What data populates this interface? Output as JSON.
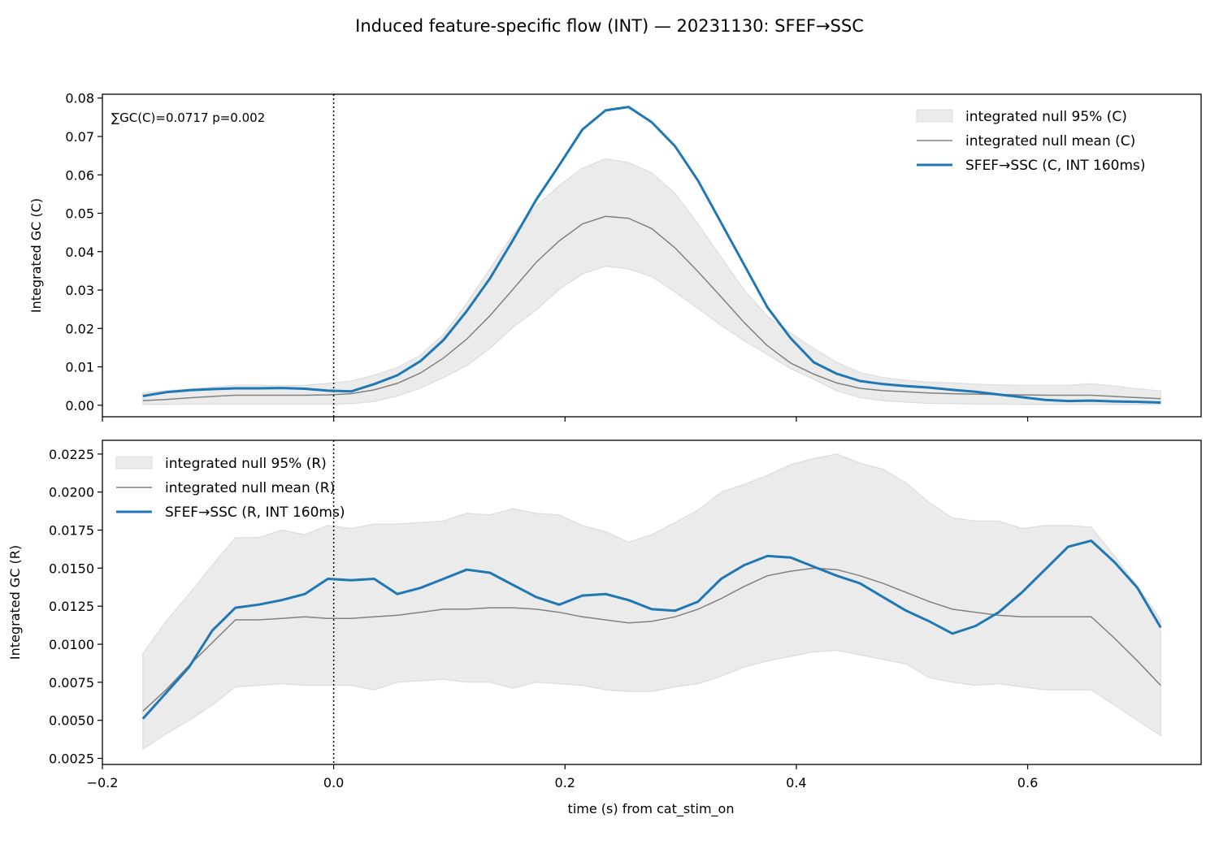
{
  "figure": {
    "title": "Induced feature-specific flow (INT) — 20231130: SFEF→SSC",
    "xlabel": "time (s) from cat_stim_on"
  },
  "colors": {
    "signal": "#1f77b4",
    "null_mean": "#808080",
    "null_band": "#ebebeb",
    "null_band_edge": "#dcdcdc"
  },
  "chart_data": [
    {
      "type": "line",
      "ylabel": "Integrated GC (C)",
      "annotation": "∑GC(C)=0.0717  p=0.002",
      "legend_position": "top-right",
      "legend": [
        "integrated null 95% (C)",
        "integrated null mean (C)",
        "SFEF→SSC (C, INT 160ms)"
      ],
      "xlim": [
        -0.2,
        0.75
      ],
      "ylim": [
        -0.003,
        0.081
      ],
      "xticks": [
        -0.2,
        0.0,
        0.2,
        0.4,
        0.6
      ],
      "xtick_labels_visible": false,
      "yticks": [
        0.0,
        0.01,
        0.02,
        0.03,
        0.04,
        0.05,
        0.06,
        0.07,
        0.08
      ],
      "ytick_labels": [
        "0.00",
        "0.01",
        "0.02",
        "0.03",
        "0.04",
        "0.05",
        "0.06",
        "0.07",
        "0.08"
      ],
      "vline_x": 0.0,
      "x": [
        -0.165,
        -0.145,
        -0.125,
        -0.105,
        -0.085,
        -0.065,
        -0.045,
        -0.025,
        -0.005,
        0.015,
        0.035,
        0.055,
        0.075,
        0.095,
        0.115,
        0.135,
        0.155,
        0.175,
        0.195,
        0.215,
        0.235,
        0.255,
        0.275,
        0.295,
        0.315,
        0.335,
        0.355,
        0.375,
        0.395,
        0.415,
        0.435,
        0.455,
        0.475,
        0.495,
        0.515,
        0.535,
        0.555,
        0.575,
        0.595,
        0.615,
        0.635,
        0.655,
        0.675,
        0.695,
        0.715
      ],
      "series": [
        {
          "name": "SFEF→SSC (C, INT 160ms)",
          "values": [
            0.0024,
            0.0034,
            0.0039,
            0.0042,
            0.0044,
            0.0044,
            0.0045,
            0.0043,
            0.0038,
            0.0036,
            0.0055,
            0.0078,
            0.0115,
            0.017,
            0.0245,
            0.033,
            0.043,
            0.0535,
            0.0625,
            0.0718,
            0.0768,
            0.0777,
            0.0737,
            0.0675,
            0.0585,
            0.0475,
            0.0365,
            0.0255,
            0.0175,
            0.0112,
            0.0082,
            0.0063,
            0.0055,
            0.005,
            0.0046,
            0.004,
            0.0035,
            0.0028,
            0.0021,
            0.0014,
            0.0011,
            0.0012,
            0.001,
            0.0009,
            0.0007
          ]
        },
        {
          "name": "integrated null mean (C)",
          "values": [
            0.0012,
            0.0015,
            0.0019,
            0.0023,
            0.0026,
            0.0026,
            0.0026,
            0.0026,
            0.0027,
            0.003,
            0.004,
            0.0057,
            0.0084,
            0.0123,
            0.0172,
            0.0233,
            0.0302,
            0.0372,
            0.0428,
            0.0472,
            0.0492,
            0.0487,
            0.046,
            0.041,
            0.0348,
            0.0282,
            0.0215,
            0.0155,
            0.011,
            0.0081,
            0.0058,
            0.0044,
            0.0038,
            0.0035,
            0.0032,
            0.003,
            0.0029,
            0.0028,
            0.0027,
            0.0026,
            0.0026,
            0.0026,
            0.0023,
            0.002,
            0.0017
          ]
        },
        {
          "name": "integrated null 95% (C)",
          "lower": [
            0.0002,
            0.0002,
            0.0003,
            0.0003,
            0.0003,
            0.0003,
            0.0003,
            0.0003,
            0.0003,
            0.0004,
            0.001,
            0.0024,
            0.0045,
            0.0072,
            0.0103,
            0.0148,
            0.0203,
            0.0248,
            0.0302,
            0.0342,
            0.0362,
            0.0355,
            0.0335,
            0.0295,
            0.0252,
            0.0208,
            0.0168,
            0.0132,
            0.0095,
            0.0068,
            0.0038,
            0.002,
            0.0012,
            0.0008,
            0.0005,
            0.0004,
            0.0003,
            0.0003,
            0.0002,
            0.0002,
            0.0002,
            0.0002,
            0.0002,
            0.0002,
            0.0002
          ],
          "upper": [
            0.0032,
            0.0038,
            0.0042,
            0.0047,
            0.0052,
            0.0052,
            0.0051,
            0.0052,
            0.0057,
            0.0063,
            0.0078,
            0.0098,
            0.013,
            0.0185,
            0.0265,
            0.0355,
            0.0445,
            0.0518,
            0.0572,
            0.0617,
            0.0642,
            0.0632,
            0.0605,
            0.0552,
            0.0472,
            0.0385,
            0.03,
            0.0232,
            0.0188,
            0.0148,
            0.0112,
            0.0085,
            0.0072,
            0.0065,
            0.006,
            0.0058,
            0.0055,
            0.0053,
            0.0052,
            0.0052,
            0.0052,
            0.0056,
            0.005,
            0.0043,
            0.0037
          ]
        }
      ]
    },
    {
      "type": "line",
      "ylabel": "Integrated GC (R)",
      "legend_position": "top-left",
      "legend": [
        "integrated null 95% (R)",
        "integrated null mean (R)",
        "SFEF→SSC (R, INT 160ms)"
      ],
      "xlim": [
        -0.2,
        0.75
      ],
      "ylim": [
        0.0021,
        0.0234
      ],
      "xticks": [
        -0.2,
        0.0,
        0.2,
        0.4,
        0.6
      ],
      "xtick_labels": [
        "−0.2",
        "0.0",
        "0.2",
        "0.4",
        "0.6"
      ],
      "yticks": [
        0.0025,
        0.005,
        0.0075,
        0.01,
        0.0125,
        0.015,
        0.0175,
        0.02,
        0.0225
      ],
      "ytick_labels": [
        "0.0025",
        "0.0050",
        "0.0075",
        "0.0100",
        "0.0125",
        "0.0150",
        "0.0175",
        "0.0200",
        "0.0225"
      ],
      "vline_x": 0.0,
      "x": [
        -0.165,
        -0.145,
        -0.125,
        -0.105,
        -0.085,
        -0.065,
        -0.045,
        -0.025,
        -0.005,
        0.015,
        0.035,
        0.055,
        0.075,
        0.095,
        0.115,
        0.135,
        0.155,
        0.175,
        0.195,
        0.215,
        0.235,
        0.255,
        0.275,
        0.295,
        0.315,
        0.335,
        0.355,
        0.375,
        0.395,
        0.415,
        0.435,
        0.455,
        0.475,
        0.495,
        0.515,
        0.535,
        0.555,
        0.575,
        0.595,
        0.615,
        0.635,
        0.655,
        0.675,
        0.695,
        0.715
      ],
      "series": [
        {
          "name": "SFEF→SSC (R, INT 160ms)",
          "values": [
            0.0051,
            0.0068,
            0.0085,
            0.0109,
            0.0124,
            0.0126,
            0.0129,
            0.0133,
            0.0143,
            0.0142,
            0.0143,
            0.0133,
            0.0137,
            0.0143,
            0.0149,
            0.0147,
            0.0139,
            0.0131,
            0.0126,
            0.0132,
            0.0133,
            0.0129,
            0.0123,
            0.0122,
            0.0128,
            0.0143,
            0.0152,
            0.0158,
            0.0157,
            0.0151,
            0.0145,
            0.014,
            0.0131,
            0.0122,
            0.0115,
            0.0107,
            0.0112,
            0.0121,
            0.0134,
            0.0149,
            0.0164,
            0.0168,
            0.0154,
            0.0137,
            0.0111
          ]
        },
        {
          "name": "integrated null mean (R)",
          "values": [
            0.0056,
            0.007,
            0.0086,
            0.0101,
            0.0116,
            0.0116,
            0.0117,
            0.0118,
            0.0117,
            0.0117,
            0.0118,
            0.0119,
            0.0121,
            0.0123,
            0.0123,
            0.0124,
            0.0124,
            0.0123,
            0.0121,
            0.0118,
            0.0116,
            0.0114,
            0.0115,
            0.0118,
            0.0123,
            0.013,
            0.0138,
            0.0145,
            0.0148,
            0.015,
            0.0149,
            0.0145,
            0.014,
            0.0134,
            0.0128,
            0.0123,
            0.0121,
            0.0119,
            0.0118,
            0.0118,
            0.0118,
            0.0118,
            0.0104,
            0.0089,
            0.0073
          ]
        },
        {
          "name": "integrated null 95% (R)",
          "lower": [
            0.0031,
            0.0041,
            0.005,
            0.006,
            0.0072,
            0.0073,
            0.0074,
            0.0073,
            0.0073,
            0.0073,
            0.007,
            0.0075,
            0.0076,
            0.0077,
            0.0075,
            0.0075,
            0.0071,
            0.0075,
            0.0074,
            0.0073,
            0.007,
            0.0069,
            0.0069,
            0.0072,
            0.0074,
            0.0079,
            0.0085,
            0.0089,
            0.0092,
            0.0095,
            0.0096,
            0.0093,
            0.009,
            0.0087,
            0.0078,
            0.0075,
            0.0073,
            0.0074,
            0.0072,
            0.007,
            0.007,
            0.007,
            0.006,
            0.005,
            0.004
          ],
          "upper": [
            0.0094,
            0.0115,
            0.0133,
            0.0152,
            0.017,
            0.017,
            0.0175,
            0.0172,
            0.0178,
            0.0176,
            0.0179,
            0.0179,
            0.018,
            0.0181,
            0.0186,
            0.0185,
            0.0189,
            0.0186,
            0.0185,
            0.0178,
            0.0174,
            0.0167,
            0.0172,
            0.018,
            0.0188,
            0.02,
            0.0205,
            0.0211,
            0.0218,
            0.0222,
            0.0225,
            0.0219,
            0.0215,
            0.0206,
            0.0193,
            0.0183,
            0.0181,
            0.0181,
            0.0176,
            0.0178,
            0.0178,
            0.0177,
            0.0158,
            0.0138,
            0.0116
          ]
        }
      ]
    }
  ]
}
